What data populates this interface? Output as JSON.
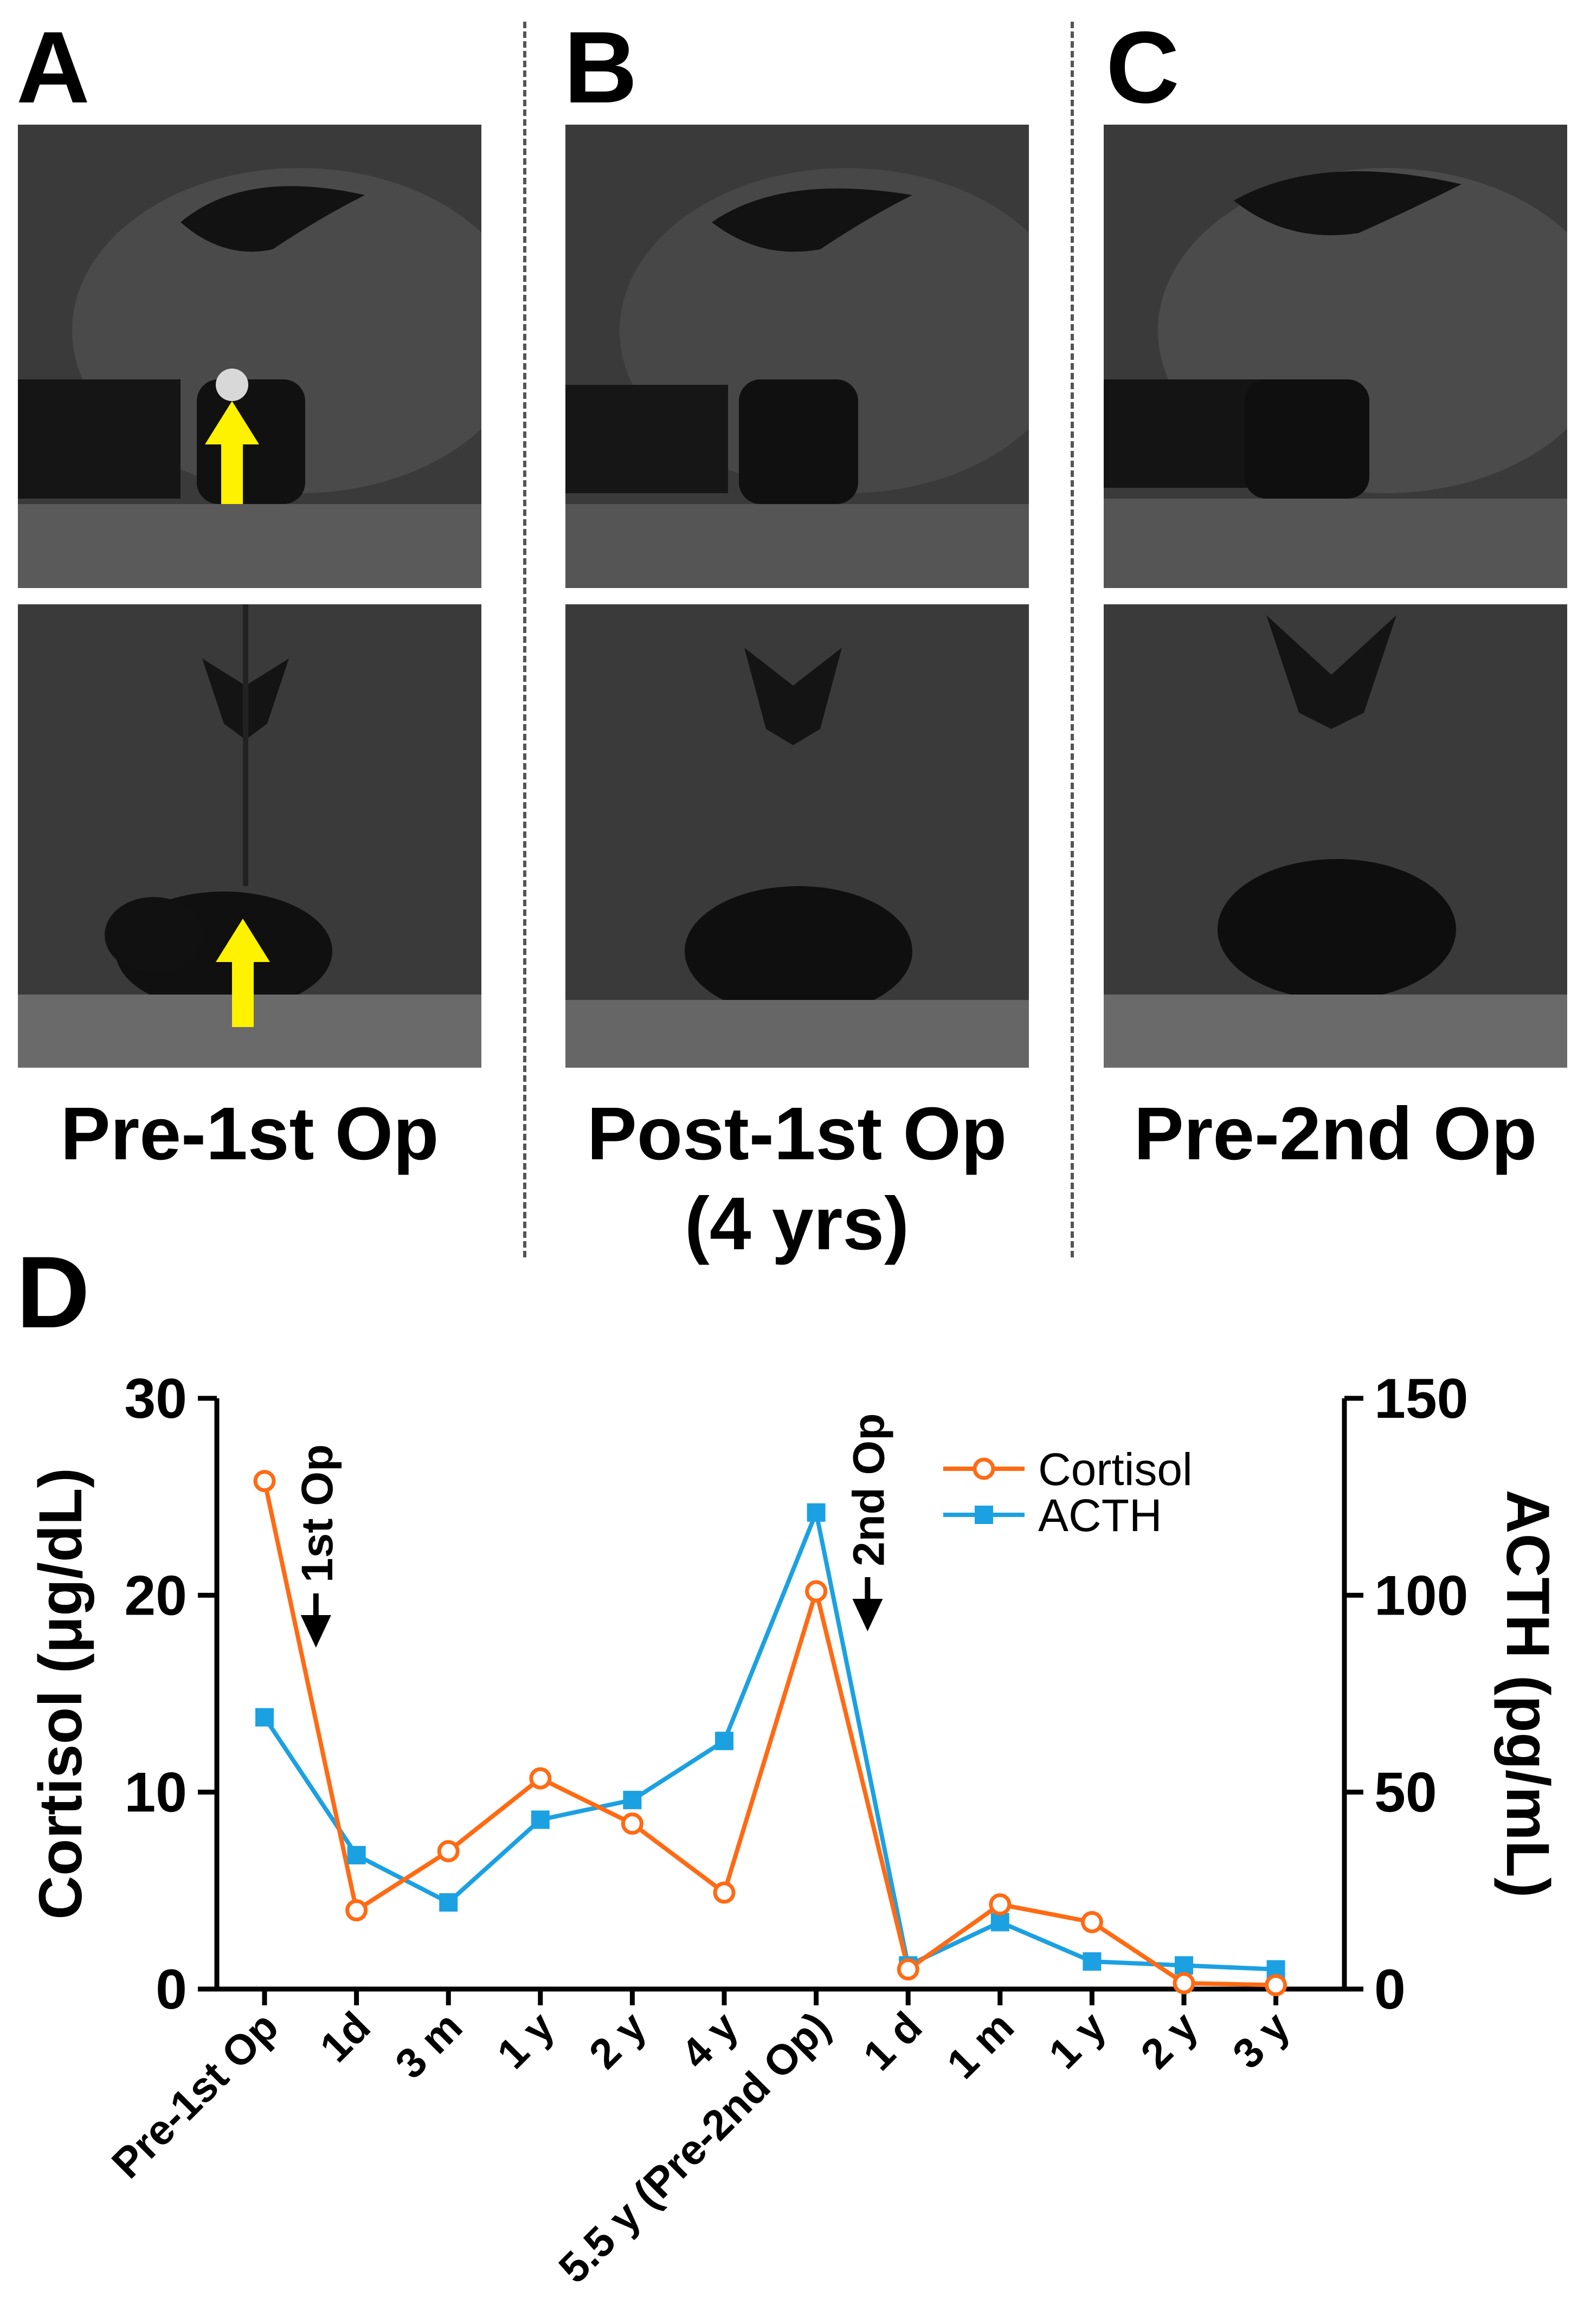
{
  "panels": {
    "A": {
      "letter": "A",
      "caption": "Pre-1st Op"
    },
    "B": {
      "letter": "B",
      "caption_line1": "Post-1st Op",
      "caption_line2": "(4 yrs)"
    },
    "C": {
      "letter": "C",
      "caption": "Pre-2nd Op"
    },
    "D": {
      "letter": "D"
    }
  },
  "colors": {
    "cortisol": "#FF6A13",
    "acth": "#1BA1E2",
    "arrow": "#FFF200",
    "axis": "#000000"
  },
  "chart_data": {
    "type": "line",
    "categories": [
      "Pre-1st Op",
      "1d",
      "3 m",
      "1 y",
      "2 y",
      "4 y",
      "5.5 y (Pre-2nd Op)",
      "1 d",
      "1 m",
      "1 y",
      "2 y",
      "3 y"
    ],
    "series": [
      {
        "name": "Cortisol",
        "axis": "left",
        "marker": "open-circle",
        "values": [
          25.8,
          4.0,
          7.0,
          10.7,
          8.4,
          4.9,
          20.2,
          1.0,
          4.3,
          3.4,
          0.3,
          0.2
        ]
      },
      {
        "name": "ACTH",
        "axis": "right",
        "marker": "filled-square",
        "values": [
          69,
          34,
          22,
          43,
          48,
          63,
          121,
          6,
          17,
          7,
          6,
          5
        ]
      }
    ],
    "ylabel_left": "Cortisol (μg/dL)",
    "ylabel_right": "ACTH (pg/mL)",
    "ylim_left": [
      0,
      30
    ],
    "ylim_right": [
      0,
      150
    ],
    "yticks_left": [
      0,
      10,
      20,
      30
    ],
    "yticks_right": [
      0,
      50,
      100,
      150
    ],
    "legend_position": "top-right",
    "annotations": [
      {
        "text": "1st Op",
        "between": [
          0,
          1
        ]
      },
      {
        "text": "2nd Op",
        "between": [
          6,
          7
        ]
      }
    ]
  }
}
